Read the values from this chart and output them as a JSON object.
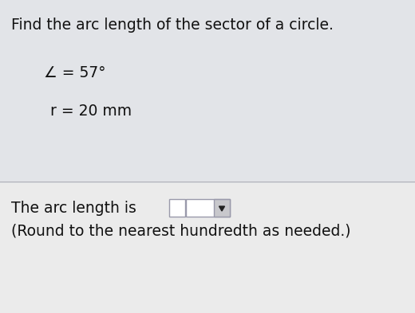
{
  "background_color": "#e2e4e8",
  "lower_background_color": "#ebebeb",
  "title": "Find the arc length of the sector of a circle.",
  "angle_label": "∠ = 57°",
  "radius_label": "r = 20 mm",
  "answer_label": "The arc length is",
  "note_label": "(Round to the nearest hundredth as needed.)",
  "title_fontsize": 13.5,
  "body_fontsize": 13.5,
  "text_color": "#111111",
  "divider_color": "#b0b0b8",
  "box_edge_color": "#9999aa",
  "arrow_color": "#222222",
  "fig_width": 5.2,
  "fig_height": 3.93,
  "dpi": 100
}
